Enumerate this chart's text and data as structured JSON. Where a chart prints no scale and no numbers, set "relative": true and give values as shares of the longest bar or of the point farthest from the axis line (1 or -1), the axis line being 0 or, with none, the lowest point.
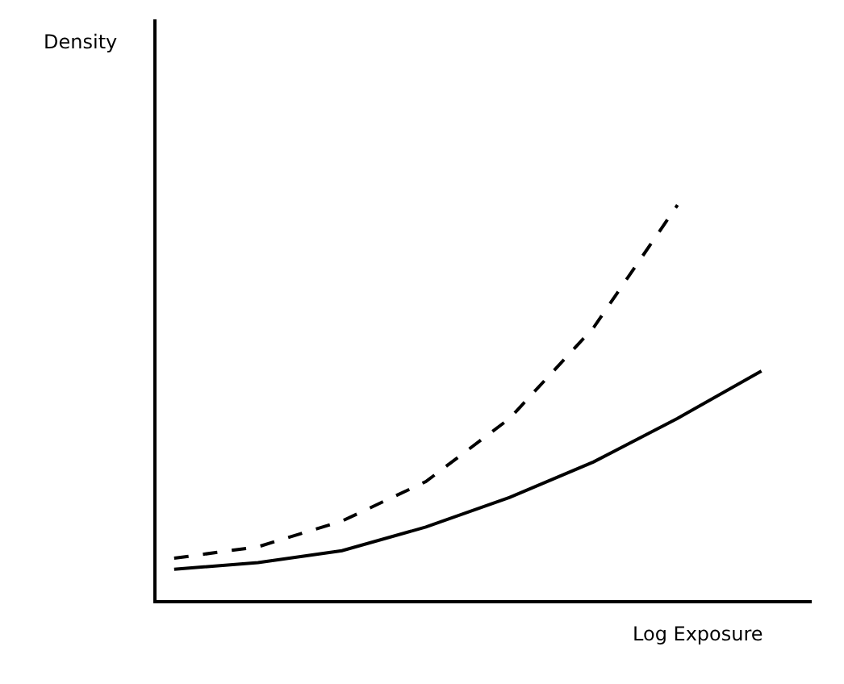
{
  "chart_data": {
    "type": "line",
    "relative": true,
    "xlabel": "Log Exposure",
    "annotations": [
      "Density"
    ],
    "categories": [
      null,
      null,
      null,
      null,
      null,
      null,
      null,
      null
    ],
    "series": [
      {
        "color": "#000000",
        "line_style": "dashed",
        "values": [
          0.106,
          0.135,
          0.2,
          0.3,
          0.46,
          0.69,
          1,
          null
        ]
      },
      {
        "color": "#000000",
        "line_style": "solid",
        "values": [
          0.078,
          0.095,
          0.125,
          0.185,
          0.26,
          0.35,
          0.46,
          0.58
        ]
      }
    ],
    "grid": false,
    "marker": "none"
  }
}
